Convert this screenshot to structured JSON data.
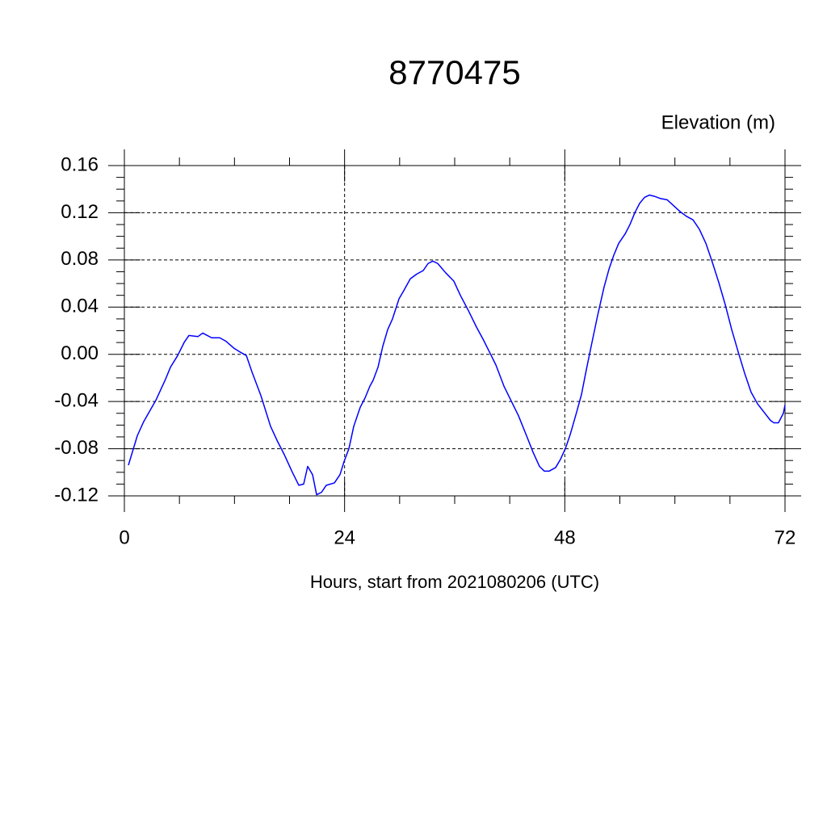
{
  "chart_data": {
    "type": "line",
    "title": "8770475",
    "y_axis_label": "Elevation (m)",
    "x_axis_label": "Hours, start from 2021080206 (UTC)",
    "xlim": [
      0,
      72
    ],
    "ylim": [
      -0.12,
      0.16
    ],
    "xticks": [
      0,
      24,
      48,
      72
    ],
    "yticks": [
      0.16,
      0.12,
      0.08,
      0.04,
      {
        "value": 0,
        "label": "0.00"
      },
      -0.04,
      -0.08,
      -0.12
    ],
    "xminorticks": [
      6,
      12,
      18,
      30,
      36,
      42,
      54,
      60,
      66
    ],
    "yminorticks": [
      0.15,
      0.14,
      0.13,
      0.11,
      0.1,
      0.09,
      0.07,
      0.06,
      0.05,
      0.03,
      0.02,
      0.01,
      -0.01,
      -0.02,
      -0.03,
      -0.05,
      -0.06,
      -0.07,
      -0.09,
      -0.1,
      -0.11
    ],
    "grid": true,
    "series": [
      {
        "name": "Elevation",
        "color": "#0000ff",
        "x": [
          0.44,
          1.41,
          2.11,
          3.43,
          4.49,
          5.02,
          5.81,
          6.51,
          7.04,
          8.01,
          8.54,
          9.51,
          10.39,
          11.09,
          11.97,
          12.59,
          13.29,
          13.91,
          14.88,
          15.93,
          16.64,
          17.43,
          18.31,
          19.01,
          19.54,
          19.98,
          20.51,
          20.95,
          21.48,
          22.01,
          22.89,
          23.5,
          23.94,
          24.47,
          25.0,
          25.7,
          26.23,
          26.76,
          27.11,
          27.64,
          28.17,
          28.7,
          29.22,
          29.93,
          30.45,
          31.16,
          31.86,
          32.57,
          33.1,
          33.62,
          34.15,
          35.03,
          35.91,
          36.62,
          37.5,
          38.38,
          39.08,
          39.79,
          40.49,
          41.37,
          42.25,
          42.95,
          43.83,
          44.54,
          45.24,
          45.77,
          46.3,
          47.0,
          47.53,
          48.06,
          48.59,
          49.29,
          49.82,
          50.35,
          50.88,
          51.58,
          52.28,
          52.81,
          53.34,
          53.87,
          54.57,
          55.1,
          55.63,
          56.16,
          56.69,
          57.21,
          57.74,
          58.45,
          59.15,
          59.86,
          60.56,
          61.26,
          61.97,
          62.67,
          63.38,
          64.08,
          64.78,
          65.49,
          66.19,
          66.9,
          67.6,
          68.3,
          69.01,
          69.71,
          70.41,
          70.77,
          71.29,
          71.82,
          72.0
        ],
        "values": [
          -0.094,
          -0.069,
          -0.057,
          -0.039,
          -0.021,
          -0.011,
          -0.001,
          0.01,
          0.016,
          0.015,
          0.018,
          0.014,
          0.014,
          0.011,
          0.005,
          0.002,
          -0.001,
          -0.015,
          -0.035,
          -0.061,
          -0.073,
          -0.085,
          -0.1,
          -0.111,
          -0.11,
          -0.095,
          -0.102,
          -0.119,
          -0.117,
          -0.111,
          -0.109,
          -0.102,
          -0.091,
          -0.08,
          -0.061,
          -0.045,
          -0.037,
          -0.027,
          -0.022,
          -0.011,
          0.007,
          0.021,
          0.03,
          0.047,
          0.054,
          0.064,
          0.068,
          0.071,
          0.077,
          0.079,
          0.077,
          0.069,
          0.062,
          0.05,
          0.037,
          0.023,
          0.013,
          0.002,
          -0.009,
          -0.027,
          -0.041,
          -0.052,
          -0.069,
          -0.083,
          -0.095,
          -0.099,
          -0.099,
          -0.096,
          -0.089,
          -0.08,
          -0.068,
          -0.049,
          -0.034,
          -0.013,
          0.007,
          0.033,
          0.057,
          0.072,
          0.084,
          0.094,
          0.102,
          0.11,
          0.12,
          0.128,
          0.133,
          0.135,
          0.134,
          0.132,
          0.131,
          0.126,
          0.121,
          0.117,
          0.114,
          0.106,
          0.094,
          0.078,
          0.061,
          0.042,
          0.021,
          0.002,
          -0.016,
          -0.032,
          -0.042,
          -0.049,
          -0.056,
          -0.058,
          -0.058,
          -0.05,
          -0.043
        ]
      }
    ]
  }
}
